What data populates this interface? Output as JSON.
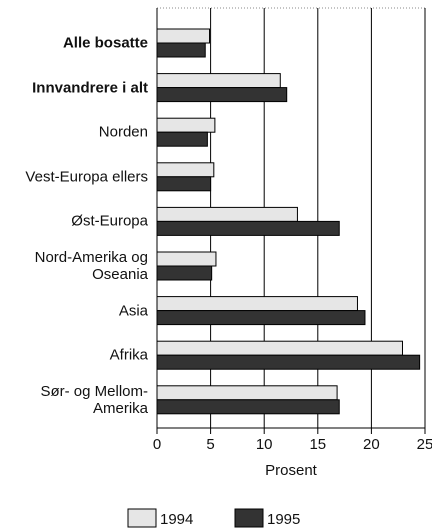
{
  "chart_data": {
    "type": "bar",
    "orientation": "horizontal",
    "categories": [
      "Alle bosatte",
      "Innvandrere i alt",
      "Norden",
      "Vest-Europa ellers",
      "Øst-Europa",
      "Nord-Amerika og\nOseania",
      "Asia",
      "Afrika",
      "Sør- og Mellom-\nAmerika"
    ],
    "bold": [
      true,
      true,
      false,
      false,
      false,
      false,
      false,
      false,
      false
    ],
    "series": [
      {
        "name": "1994",
        "color": "#e6e6e6",
        "values": [
          4.9,
          11.5,
          5.4,
          5.3,
          13.1,
          5.5,
          18.7,
          22.9,
          16.8
        ]
      },
      {
        "name": "1995",
        "color": "#333333",
        "values": [
          4.5,
          12.1,
          4.7,
          5.0,
          17.0,
          5.1,
          19.4,
          24.5,
          17.0
        ]
      }
    ],
    "xlabel": "Prosent",
    "xlim": [
      0,
      25
    ],
    "xticks": [
      0,
      5,
      10,
      15,
      20,
      25
    ],
    "grid": true,
    "legend": "bottom"
  }
}
